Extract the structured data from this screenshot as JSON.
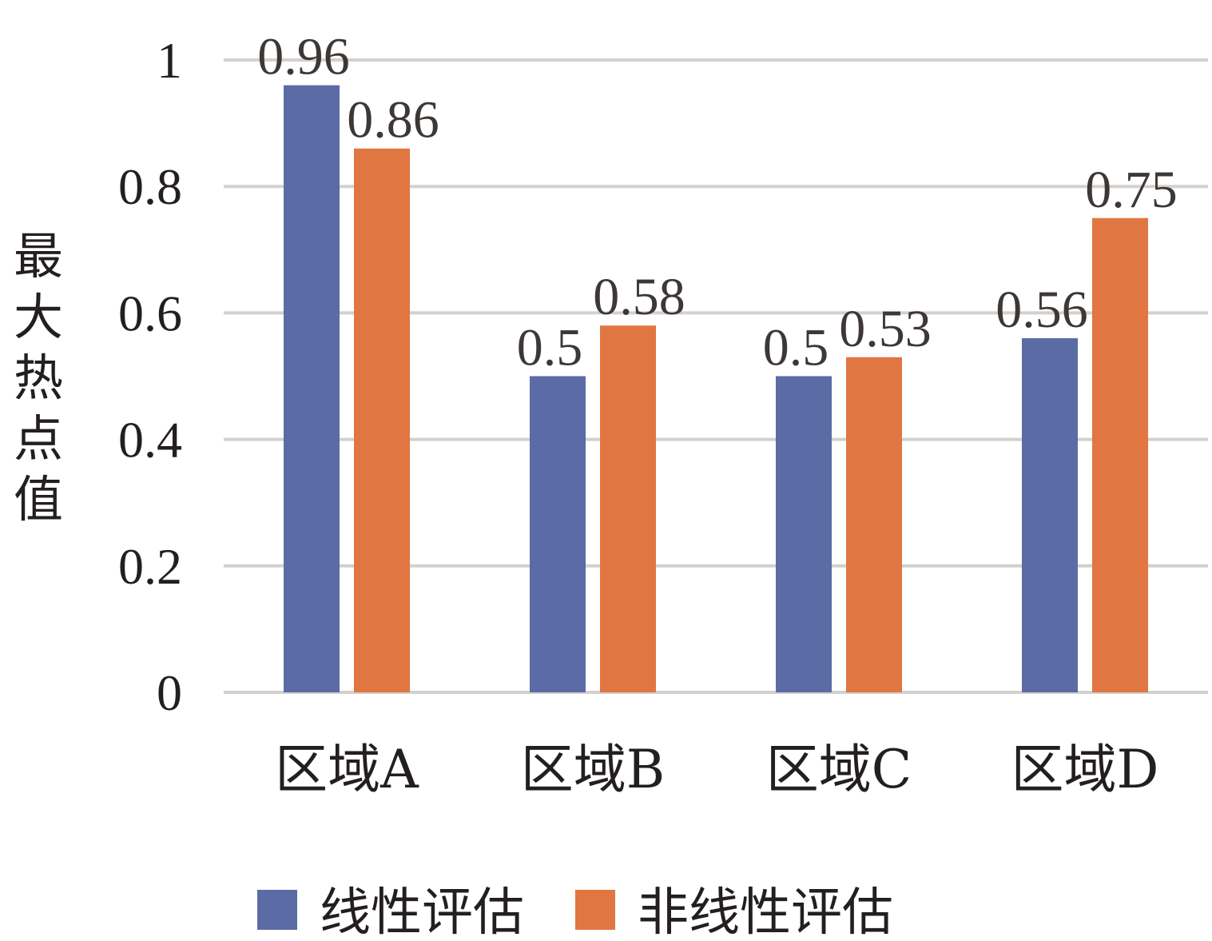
{
  "chart_data": {
    "type": "bar",
    "categories": [
      "区域A",
      "区域B",
      "区域C",
      "区域D"
    ],
    "series": [
      {
        "name": "线性评估",
        "values": [
          0.96,
          0.5,
          0.5,
          0.56
        ],
        "labels": [
          "0.96",
          "0.5",
          "0.5",
          "0.56"
        ],
        "color": "#5b6ba6"
      },
      {
        "name": "非线性评估",
        "values": [
          0.86,
          0.58,
          0.53,
          0.75
        ],
        "labels": [
          "0.86",
          "0.58",
          "0.53",
          "0.75"
        ],
        "color": "#e07742"
      }
    ],
    "ylabel": "最大热点值",
    "ylim": [
      0,
      1
    ],
    "yticks": [
      0,
      0.2,
      0.4,
      0.6,
      0.8,
      1
    ],
    "ytick_labels": [
      "0",
      "0.2",
      "0.4",
      "0.6",
      "0.8",
      "1"
    ],
    "grid": true,
    "legend": "bottom"
  }
}
